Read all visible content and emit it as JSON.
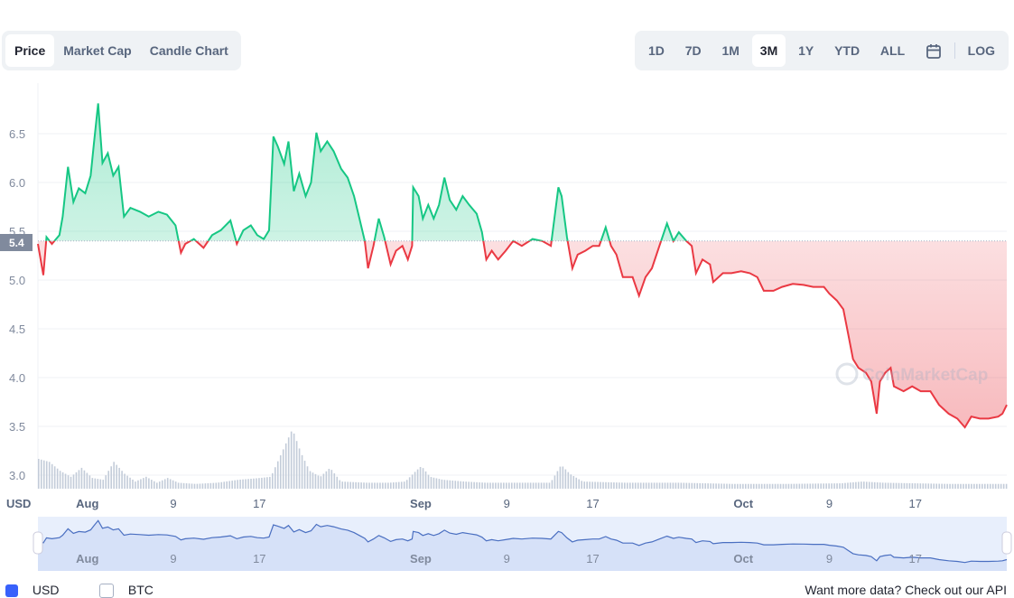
{
  "chart_tabs": [
    {
      "label": "Price",
      "active": true
    },
    {
      "label": "Market Cap",
      "active": false
    },
    {
      "label": "Candle Chart",
      "active": false
    }
  ],
  "ranges": [
    {
      "label": "1D"
    },
    {
      "label": "7D"
    },
    {
      "label": "1M"
    },
    {
      "label": "3M",
      "active": true
    },
    {
      "label": "1Y"
    },
    {
      "label": "YTD"
    },
    {
      "label": "ALL"
    }
  ],
  "log_label": "LOG",
  "calendar_icon": "calendar-icon",
  "colors": {
    "up": "#16c784",
    "down": "#ea3943",
    "navigator": "#4a6fc1",
    "volume": "#c3ccd9"
  },
  "watermark": "CoinMarketCap",
  "footer": {
    "usd": "USD",
    "btc": "BTC",
    "api": "Want more data? Check out our API"
  },
  "chart_data": {
    "type": "line",
    "currency_label": "USD",
    "x_unit": "days since Aug 1",
    "ylim": [
      2.9,
      6.9
    ],
    "yticks": [
      3.0,
      3.5,
      4.0,
      4.5,
      5.0,
      5.5,
      6.0,
      6.5
    ],
    "ytick_labels": [
      "3.0",
      "3.5",
      "4.0",
      "4.5",
      "5.0",
      "5.5",
      "6.0",
      "6.5"
    ],
    "reference_value": 5.4,
    "reference_label": "5.4",
    "xlim": [
      -4.6,
      85.5
    ],
    "xticks": [
      {
        "day": 0,
        "label": "Aug"
      },
      {
        "day": 8,
        "label": "9"
      },
      {
        "day": 16,
        "label": "17"
      },
      {
        "day": 31,
        "label": "Sep"
      },
      {
        "day": 39,
        "label": "9"
      },
      {
        "day": 47,
        "label": "17"
      },
      {
        "day": 61,
        "label": "Oct"
      },
      {
        "day": 69,
        "label": "9"
      },
      {
        "day": 77,
        "label": "17"
      }
    ],
    "price": [
      [
        -4.6,
        5.37
      ],
      [
        -4.1,
        5.05
      ],
      [
        -3.8,
        5.44
      ],
      [
        -3.3,
        5.37
      ],
      [
        -2.6,
        5.46
      ],
      [
        -2.3,
        5.65
      ],
      [
        -1.8,
        6.16
      ],
      [
        -1.3,
        5.8
      ],
      [
        -0.8,
        5.94
      ],
      [
        -0.2,
        5.89
      ],
      [
        0.3,
        6.07
      ],
      [
        0.6,
        6.39
      ],
      [
        1.0,
        6.81
      ],
      [
        1.4,
        6.2
      ],
      [
        1.9,
        6.3
      ],
      [
        2.4,
        6.07
      ],
      [
        2.9,
        6.16
      ],
      [
        3.4,
        5.65
      ],
      [
        4.0,
        5.74
      ],
      [
        4.9,
        5.7
      ],
      [
        5.7,
        5.65
      ],
      [
        6.6,
        5.7
      ],
      [
        7.4,
        5.67
      ],
      [
        8.2,
        5.56
      ],
      [
        8.7,
        5.28
      ],
      [
        9.1,
        5.37
      ],
      [
        9.9,
        5.42
      ],
      [
        10.8,
        5.33
      ],
      [
        11.6,
        5.46
      ],
      [
        12.4,
        5.51
      ],
      [
        13.3,
        5.61
      ],
      [
        13.9,
        5.37
      ],
      [
        14.5,
        5.51
      ],
      [
        15.2,
        5.56
      ],
      [
        15.8,
        5.46
      ],
      [
        16.4,
        5.42
      ],
      [
        16.9,
        5.51
      ],
      [
        17.3,
        6.47
      ],
      [
        17.7,
        6.37
      ],
      [
        18.3,
        6.19
      ],
      [
        18.7,
        6.42
      ],
      [
        19.2,
        5.91
      ],
      [
        19.7,
        6.09
      ],
      [
        20.3,
        5.86
      ],
      [
        20.8,
        6.0
      ],
      [
        21.3,
        6.51
      ],
      [
        21.7,
        6.32
      ],
      [
        22.3,
        6.42
      ],
      [
        22.9,
        6.32
      ],
      [
        23.6,
        6.14
      ],
      [
        24.2,
        6.05
      ],
      [
        24.8,
        5.86
      ],
      [
        25.3,
        5.63
      ],
      [
        25.8,
        5.4
      ],
      [
        26.1,
        5.12
      ],
      [
        26.6,
        5.35
      ],
      [
        27.1,
        5.63
      ],
      [
        27.6,
        5.44
      ],
      [
        28.2,
        5.16
      ],
      [
        28.7,
        5.3
      ],
      [
        29.3,
        5.35
      ],
      [
        29.8,
        5.21
      ],
      [
        30.2,
        5.35
      ],
      [
        30.3,
        5.95
      ],
      [
        30.8,
        5.86
      ],
      [
        31.2,
        5.63
      ],
      [
        31.7,
        5.77
      ],
      [
        32.2,
        5.63
      ],
      [
        32.7,
        5.77
      ],
      [
        33.2,
        6.05
      ],
      [
        33.7,
        5.82
      ],
      [
        34.3,
        5.72
      ],
      [
        34.9,
        5.86
      ],
      [
        35.5,
        5.77
      ],
      [
        36.2,
        5.68
      ],
      [
        36.7,
        5.49
      ],
      [
        37.1,
        5.21
      ],
      [
        37.6,
        5.3
      ],
      [
        38.2,
        5.21
      ],
      [
        38.9,
        5.3
      ],
      [
        39.6,
        5.4
      ],
      [
        40.4,
        5.35
      ],
      [
        41.4,
        5.42
      ],
      [
        42.3,
        5.4
      ],
      [
        43.1,
        5.35
      ],
      [
        43.8,
        5.95
      ],
      [
        44.1,
        5.86
      ],
      [
        44.6,
        5.44
      ],
      [
        45.1,
        5.12
      ],
      [
        45.6,
        5.26
      ],
      [
        46.3,
        5.3
      ],
      [
        47.0,
        5.35
      ],
      [
        47.6,
        5.35
      ],
      [
        48.2,
        5.54
      ],
      [
        48.7,
        5.35
      ],
      [
        49.2,
        5.26
      ],
      [
        49.8,
        5.03
      ],
      [
        50.7,
        5.03
      ],
      [
        51.3,
        4.84
      ],
      [
        51.9,
        5.03
      ],
      [
        52.5,
        5.12
      ],
      [
        53.2,
        5.35
      ],
      [
        53.9,
        5.58
      ],
      [
        54.5,
        5.4
      ],
      [
        55.0,
        5.49
      ],
      [
        55.7,
        5.4
      ],
      [
        56.2,
        5.35
      ],
      [
        56.6,
        5.07
      ],
      [
        57.2,
        5.21
      ],
      [
        57.9,
        5.16
      ],
      [
        58.2,
        4.98
      ],
      [
        59.1,
        5.07
      ],
      [
        59.9,
        5.07
      ],
      [
        60.8,
        5.09
      ],
      [
        61.6,
        5.07
      ],
      [
        62.3,
        5.03
      ],
      [
        62.9,
        4.89
      ],
      [
        63.8,
        4.89
      ],
      [
        64.6,
        4.93
      ],
      [
        65.6,
        4.96
      ],
      [
        66.6,
        4.95
      ],
      [
        67.5,
        4.93
      ],
      [
        68.5,
        4.93
      ],
      [
        69.0,
        4.86
      ],
      [
        69.7,
        4.79
      ],
      [
        70.3,
        4.7
      ],
      [
        70.8,
        4.42
      ],
      [
        71.2,
        4.19
      ],
      [
        71.7,
        4.1
      ],
      [
        72.4,
        4.05
      ],
      [
        72.9,
        3.96
      ],
      [
        73.4,
        3.63
      ],
      [
        73.7,
        3.96
      ],
      [
        74.2,
        4.05
      ],
      [
        74.7,
        4.1
      ],
      [
        75.0,
        3.91
      ],
      [
        75.9,
        3.86
      ],
      [
        76.7,
        3.91
      ],
      [
        77.5,
        3.86
      ],
      [
        78.4,
        3.86
      ],
      [
        79.2,
        3.72
      ],
      [
        80.1,
        3.63
      ],
      [
        80.9,
        3.58
      ],
      [
        81.6,
        3.49
      ],
      [
        82.2,
        3.6
      ],
      [
        83.0,
        3.58
      ],
      [
        83.8,
        3.58
      ],
      [
        84.7,
        3.6
      ],
      [
        85.1,
        3.63
      ],
      [
        85.5,
        3.72
      ]
    ],
    "volume_relative": [
      [
        -4.6,
        0.5
      ],
      [
        -3.6,
        0.45
      ],
      [
        -2.6,
        0.3
      ],
      [
        -1.6,
        0.2
      ],
      [
        -0.6,
        0.35
      ],
      [
        0.4,
        0.18
      ],
      [
        1.4,
        0.15
      ],
      [
        2.4,
        0.45
      ],
      [
        3.4,
        0.25
      ],
      [
        4.4,
        0.12
      ],
      [
        5.4,
        0.2
      ],
      [
        6.4,
        0.1
      ],
      [
        7.4,
        0.18
      ],
      [
        8.4,
        0.1
      ],
      [
        10,
        0.08
      ],
      [
        12,
        0.1
      ],
      [
        14,
        0.15
      ],
      [
        16,
        0.18
      ],
      [
        17,
        0.2
      ],
      [
        18,
        0.6
      ],
      [
        19,
        1.0
      ],
      [
        19.8,
        0.6
      ],
      [
        20.6,
        0.3
      ],
      [
        21.6,
        0.2
      ],
      [
        22.5,
        0.35
      ],
      [
        23.5,
        0.12
      ],
      [
        26,
        0.1
      ],
      [
        28,
        0.1
      ],
      [
        29.5,
        0.12
      ],
      [
        30.5,
        0.3
      ],
      [
        31,
        0.38
      ],
      [
        31.8,
        0.2
      ],
      [
        33,
        0.15
      ],
      [
        35,
        0.12
      ],
      [
        37,
        0.1
      ],
      [
        40,
        0.1
      ],
      [
        43,
        0.1
      ],
      [
        44,
        0.4
      ],
      [
        44.8,
        0.25
      ],
      [
        46,
        0.12
      ],
      [
        50,
        0.1
      ],
      [
        55,
        0.1
      ],
      [
        60,
        0.08
      ],
      [
        65,
        0.08
      ],
      [
        70,
        0.09
      ],
      [
        72,
        0.12
      ],
      [
        74,
        0.1
      ],
      [
        80,
        0.08
      ],
      [
        85.5,
        0.08
      ]
    ]
  }
}
